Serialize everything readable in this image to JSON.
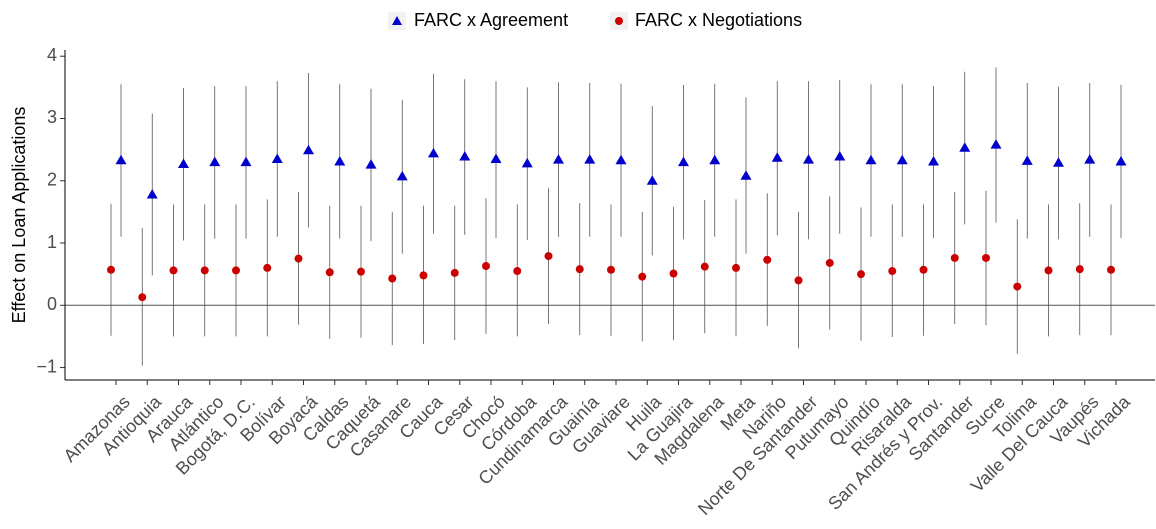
{
  "chart_data": {
    "type": "errorbar",
    "y_label": "Effect on Loan Applications",
    "categories": [
      "Amazonas",
      "Antioquia",
      "Arauca",
      "Atlántico",
      "Bogotá, D.C.",
      "Bolívar",
      "Boyacá",
      "Caldas",
      "Caquetá",
      "Casanare",
      "Cauca",
      "Cesar",
      "Chocó",
      "Córdoba",
      "Cundinamarca",
      "Guainía",
      "Guaviare",
      "Huila",
      "La Guajira",
      "Magdalena",
      "Meta",
      "Nariño",
      "Norte De Santander",
      "Putumayo",
      "Quindío",
      "Risaralda",
      "San Andrés y Prov.",
      "Santander",
      "Sucre",
      "Tolima",
      "Valle Del Cauca",
      "Vaupés",
      "Vichada"
    ],
    "series": [
      {
        "name": "FARC x Agreement",
        "color": "#0000cc",
        "marker": "triangle",
        "values": [
          2.33,
          1.78,
          2.27,
          2.3,
          2.3,
          2.35,
          2.49,
          2.31,
          2.26,
          2.07,
          2.44,
          2.39,
          2.35,
          2.28,
          2.34,
          2.34,
          2.33,
          2.0,
          2.3,
          2.33,
          2.08,
          2.37,
          2.34,
          2.39,
          2.33,
          2.33,
          2.31,
          2.53,
          2.58,
          2.32,
          2.29,
          2.34,
          2.31
        ],
        "lower": [
          1.1,
          0.48,
          1.04,
          1.07,
          1.07,
          1.1,
          1.25,
          1.07,
          1.03,
          0.83,
          1.15,
          1.13,
          1.08,
          1.05,
          1.1,
          1.1,
          1.1,
          0.8,
          1.06,
          1.1,
          0.83,
          1.12,
          1.06,
          1.15,
          1.1,
          1.1,
          1.08,
          1.3,
          1.33,
          1.07,
          1.06,
          1.1,
          1.08
        ],
        "upper": [
          3.55,
          3.08,
          3.49,
          3.52,
          3.52,
          3.6,
          3.73,
          3.55,
          3.48,
          3.3,
          3.72,
          3.63,
          3.6,
          3.5,
          3.58,
          3.57,
          3.56,
          3.2,
          3.54,
          3.56,
          3.34,
          3.6,
          3.6,
          3.62,
          3.55,
          3.55,
          3.52,
          3.75,
          3.82,
          3.57,
          3.51,
          3.57,
          3.54
        ]
      },
      {
        "name": "FARC x Negotiations",
        "color": "#cc0000",
        "marker": "circle",
        "values": [
          0.57,
          0.13,
          0.56,
          0.56,
          0.56,
          0.6,
          0.75,
          0.53,
          0.54,
          0.43,
          0.48,
          0.52,
          0.63,
          0.55,
          0.79,
          0.58,
          0.57,
          0.46,
          0.51,
          0.62,
          0.6,
          0.73,
          0.4,
          0.68,
          0.5,
          0.55,
          0.57,
          0.76,
          0.76,
          0.3,
          0.56,
          0.58,
          0.57
        ],
        "lower": [
          -0.49,
          -0.97,
          -0.5,
          -0.5,
          -0.5,
          -0.5,
          -0.31,
          -0.54,
          -0.52,
          -0.64,
          -0.62,
          -0.56,
          -0.46,
          -0.5,
          -0.3,
          -0.48,
          -0.49,
          -0.58,
          -0.56,
          -0.45,
          -0.5,
          -0.33,
          -0.69,
          -0.39,
          -0.57,
          -0.51,
          -0.49,
          -0.3,
          -0.32,
          -0.78,
          -0.5,
          -0.48,
          -0.48
        ],
        "upper": [
          1.63,
          1.24,
          1.62,
          1.62,
          1.62,
          1.7,
          1.82,
          1.6,
          1.6,
          1.5,
          1.6,
          1.6,
          1.72,
          1.62,
          1.88,
          1.64,
          1.62,
          1.5,
          1.58,
          1.69,
          1.7,
          1.8,
          1.5,
          1.75,
          1.57,
          1.62,
          1.62,
          1.82,
          1.84,
          1.38,
          1.62,
          1.64,
          1.62
        ]
      }
    ],
    "ylim": [
      -1.2,
      4.1
    ],
    "yticks": [
      {
        "value": -1,
        "label": "−1"
      },
      0,
      1,
      2,
      3,
      4
    ],
    "hline": 0,
    "legend": "top"
  }
}
